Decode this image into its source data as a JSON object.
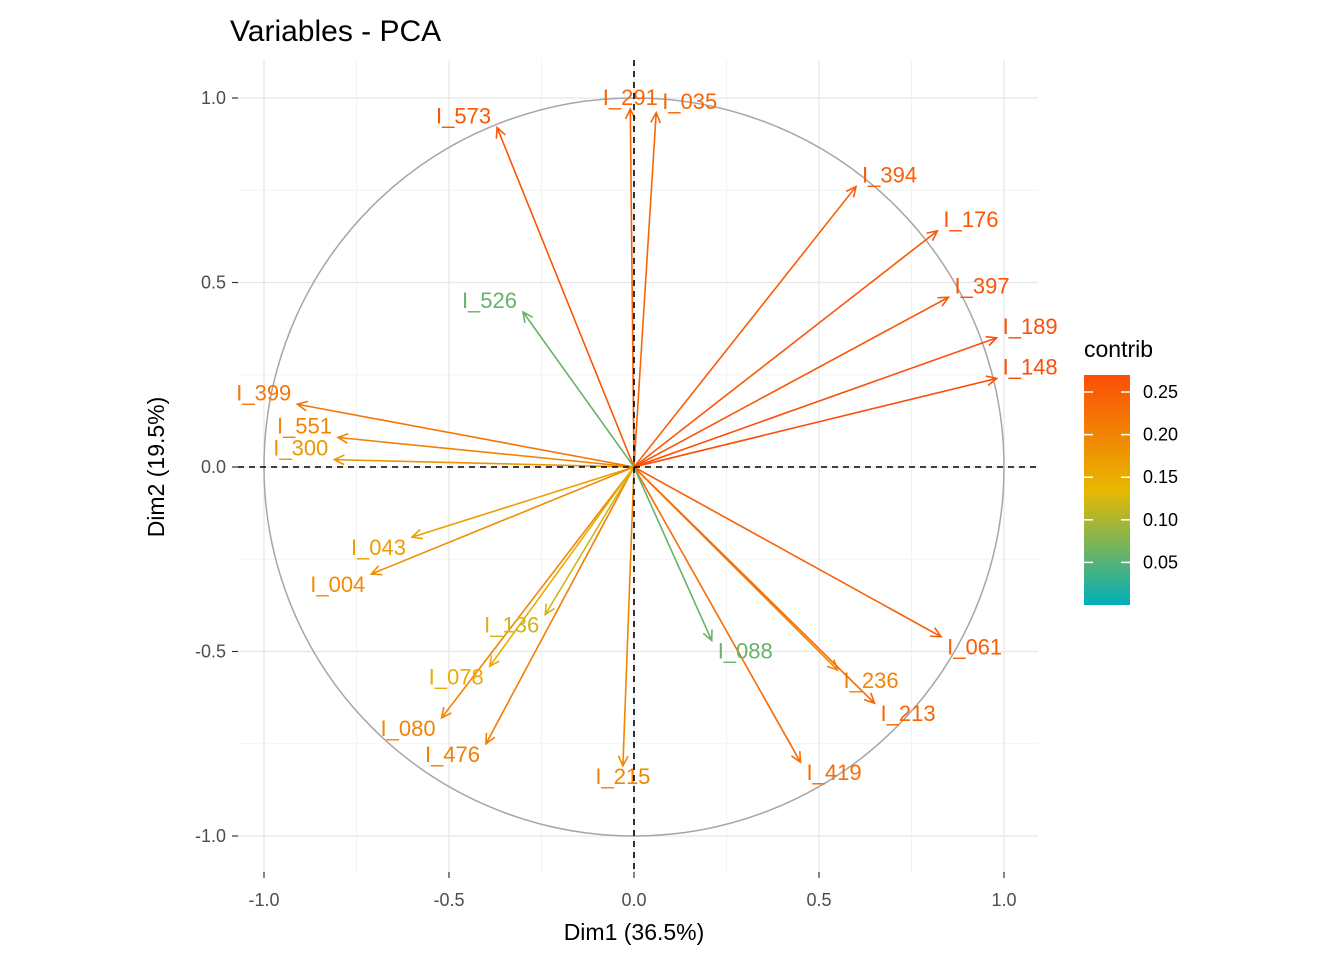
{
  "chart_data": {
    "type": "scatter",
    "subtype": "pca-variable-correlation-circle",
    "title": "Variables - PCA",
    "xlabel": "Dim1 (36.5%)",
    "ylabel": "Dim2 (19.5%)",
    "xlim": [
      -1.0,
      1.0
    ],
    "ylim": [
      -1.0,
      1.0
    ],
    "xticks": [
      "-1.0",
      "-0.5",
      "0.0",
      "0.5",
      "1.0"
    ],
    "yticks": [
      "-1.0",
      "-0.5",
      "0.0",
      "0.5",
      "1.0"
    ],
    "grid": true,
    "unit_circle": true,
    "reference_lines": "dashed lines at x=0 and y=0",
    "legend": {
      "title": "contrib",
      "position": "right",
      "labels": [
        "0.25",
        "0.20",
        "0.15",
        "0.10",
        "0.05"
      ],
      "range": [
        0.0,
        0.27
      ],
      "gradient_colors": [
        "#00AFBB",
        "#E7B800",
        "#FC4E07"
      ]
    },
    "points": [
      {
        "label": "I_291",
        "x": -0.01,
        "y": 0.97,
        "contrib": 0.24
      },
      {
        "label": "I_035",
        "x": 0.06,
        "y": 0.96,
        "contrib": 0.24
      },
      {
        "label": "I_573",
        "x": -0.37,
        "y": 0.92,
        "contrib": 0.26
      },
      {
        "label": "I_394",
        "x": 0.6,
        "y": 0.76,
        "contrib": 0.25
      },
      {
        "label": "I_399",
        "x": -0.91,
        "y": 0.17,
        "contrib": 0.22
      },
      {
        "label": "I_551",
        "x": -0.8,
        "y": 0.08,
        "contrib": 0.2
      },
      {
        "label": "I_300",
        "x": -0.81,
        "y": 0.02,
        "contrib": 0.18
      },
      {
        "label": "I_043",
        "x": -0.6,
        "y": -0.19,
        "contrib": 0.17
      },
      {
        "label": "I_004",
        "x": -0.71,
        "y": -0.29,
        "contrib": 0.19
      },
      {
        "label": "I_080",
        "x": -0.52,
        "y": -0.68,
        "contrib": 0.2
      },
      {
        "label": "I_476",
        "x": -0.4,
        "y": -0.75,
        "contrib": 0.21
      },
      {
        "label": "I_215",
        "x": -0.03,
        "y": -0.81,
        "contrib": 0.2
      },
      {
        "label": "I_419",
        "x": 0.45,
        "y": -0.8,
        "contrib": 0.23
      },
      {
        "label": "I_136",
        "x": -0.24,
        "y": -0.4,
        "contrib": 0.12
      },
      {
        "label": "I_078",
        "x": -0.39,
        "y": -0.54,
        "contrib": 0.15
      },
      {
        "label": "I_236",
        "x": 0.55,
        "y": -0.55,
        "contrib": 0.2
      },
      {
        "label": "I_213",
        "x": 0.65,
        "y": -0.64,
        "contrib": 0.24
      },
      {
        "label": "I_176",
        "x": 0.82,
        "y": 0.64,
        "contrib": 0.26
      },
      {
        "label": "I_397",
        "x": 0.85,
        "y": 0.46,
        "contrib": 0.26
      },
      {
        "label": "I_189",
        "x": 0.98,
        "y": 0.35,
        "contrib": 0.27
      },
      {
        "label": "I_148",
        "x": 0.98,
        "y": 0.24,
        "contrib": 0.27
      },
      {
        "label": "I_061",
        "x": 0.83,
        "y": -0.46,
        "contrib": 0.25
      },
      {
        "label": "I_526",
        "x": -0.3,
        "y": 0.42,
        "contrib": 0.06
      },
      {
        "label": "I_088",
        "x": 0.21,
        "y": -0.47,
        "contrib": 0.06
      }
    ]
  }
}
